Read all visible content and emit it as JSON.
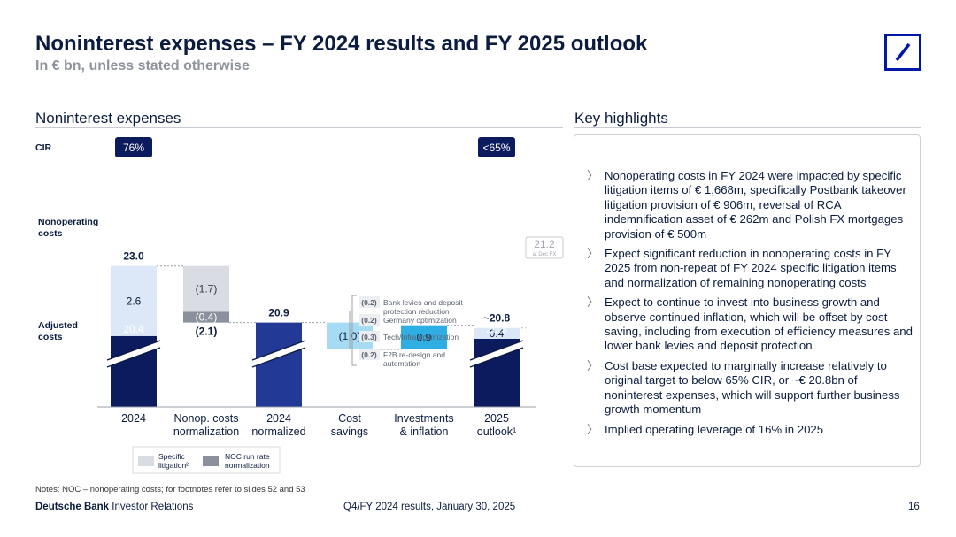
{
  "header": {
    "title": "Noninterest expenses – FY 2024 results and FY 2025 outlook",
    "subtitle": "In € bn, unless stated otherwise"
  },
  "left_section": {
    "title": "Noninterest expenses"
  },
  "right_section": {
    "title": "Key highlights",
    "items": [
      "Nonoperating costs in FY 2024 were impacted by specific litigation items of € 1,668m, specifically Postbank takeover litigation provision of € 906m, reversal of RCA indemnification asset of € 262m and Polish FX mortgages provision of € 500m",
      "Expect significant reduction in nonoperating costs in FY 2025 from non-repeat of FY 2024 specific litigation items and normalization of remaining nonoperating costs",
      "Expect to continue to invest into business growth and observe continued inflation, which will be offset by cost saving, including from execution of efficiency measures and lower bank levies and deposit protection",
      "Cost base expected to marginally increase relatively to original target to below 65% CIR, or ~€ 20.8bn of noninterest expenses, which will support further business growth momentum",
      "Implied operating leverage of 16% in 2025"
    ]
  },
  "chart_data": {
    "type": "bar",
    "subtype": "waterfall",
    "row_labels": {
      "cir": "CIR",
      "nonoperating": "Nonoperating costs",
      "adjusted": "Adjusted costs"
    },
    "categories": [
      "2024",
      "Nonop. costs normalization",
      "2024 normalized",
      "Cost savings",
      "Investments & inflation",
      "2025 outlook¹"
    ],
    "cir_badges": [
      "76%",
      "",
      "",
      "",
      "",
      "<65%"
    ],
    "totals": [
      "23.0",
      "(2.1)",
      "20.9",
      "",
      "",
      "~20.8"
    ],
    "segments": [
      {
        "category": "2024",
        "type": "adjusted",
        "value": 20.4,
        "label": "20.4",
        "color": "#0c1a5e"
      },
      {
        "category": "2024",
        "type": "nonoperating",
        "value": 2.6,
        "label": "2.6",
        "color": "#dce8f8"
      },
      {
        "category": "Nonop. costs normalization",
        "type": "specific_litigation",
        "value": -1.7,
        "label": "(1.7)",
        "color": "#d9dce2"
      },
      {
        "category": "Nonop. costs normalization",
        "type": "noc_run_rate",
        "value": -0.4,
        "label": "(0.4)",
        "color": "#8a909c"
      },
      {
        "category": "2024 normalized",
        "type": "adjusted",
        "value": 20.9,
        "label": "",
        "color": "#223a96"
      },
      {
        "category": "Cost savings",
        "type": "savings",
        "value": -1.0,
        "label": "(1.0)",
        "color": "#a6dcf3"
      },
      {
        "category": "Investments & inflation",
        "type": "investments",
        "value": 0.9,
        "label": "0.9",
        "color": "#2eaee2"
      },
      {
        "category": "2025 outlook¹",
        "type": "adjusted",
        "value": 20.3,
        "label": "20.3",
        "color": "#0c1a5e"
      },
      {
        "category": "2025 outlook¹",
        "type": "nonoperating",
        "value": 0.4,
        "label": "0.4",
        "color": "#dce8f8"
      }
    ],
    "savings_breakdown": [
      {
        "value": "(0.2)",
        "label": "Bank levies and deposit protection reduction"
      },
      {
        "value": "(0.2)",
        "label": "Germany optimization"
      },
      {
        "value": "(0.3)",
        "label": "Tech/Infra optimization"
      },
      {
        "value": "(0.2)",
        "label": "F2B re-design and automation"
      }
    ],
    "at_const_fx": {
      "value": "21.2",
      "label": "at Dec FX"
    },
    "legend": [
      {
        "label": "Specific litigation²",
        "color": "#d9dce2"
      },
      {
        "label": "NOC run rate normalization",
        "color": "#8a909c"
      }
    ],
    "legend_placement": "bottom-left",
    "axis_break": true
  },
  "footer": {
    "notes": "Notes: NOC – nonoperating costs; for footnotes refer to slides 52 and 53",
    "brand_bold": "Deutsche Bank",
    "brand_rest": " Investor Relations",
    "center": "Q4/FY 2024 results, January 30, 2025",
    "page": "16"
  }
}
